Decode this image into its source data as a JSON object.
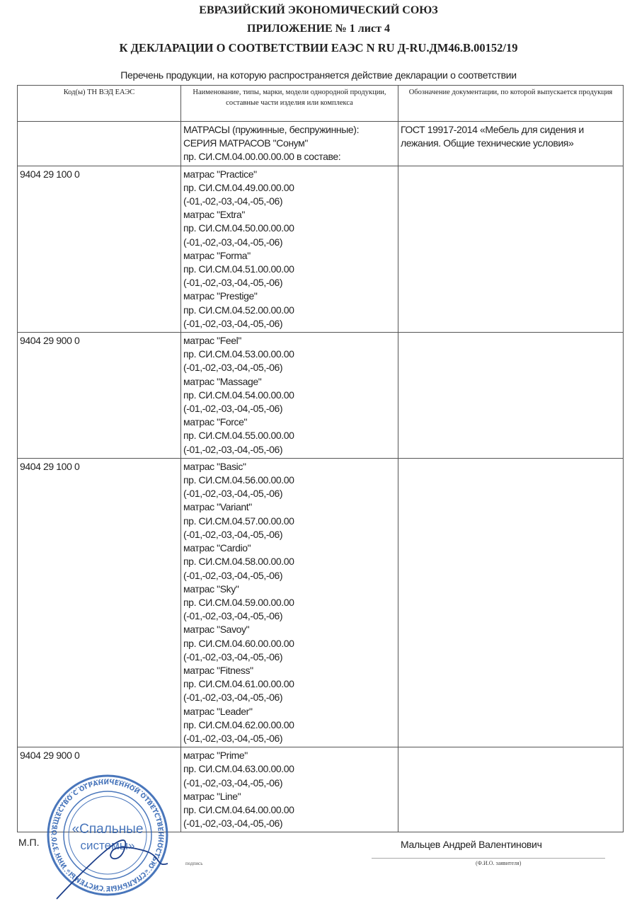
{
  "header": {
    "line1": "ЕВРАЗИЙСКИЙ ЭКОНОМИЧЕСКИЙ СОЮЗ",
    "line2": "ПРИЛОЖЕНИЕ № 1 лист 4",
    "line3": "К ДЕКЛАРАЦИИ О СООТВЕТСТВИИ ЕАЭС N RU Д-RU.ДМ46.В.00152/19"
  },
  "subtitle": "Перечень продукции, на которую распространяется действие декларации о соответствии",
  "table": {
    "columns": [
      "Код(ы) ТН ВЭД ЕАЭС",
      "Наименование, типы, марки, модели однородной продукции, составные части изделия или комплекса",
      "Обозначение документации, по которой выпускается продукция"
    ],
    "rows": [
      {
        "code": "",
        "items": [
          "МАТРАСЫ (пружинные, беспружинные):",
          "СЕРИЯ МАТРАСОВ \"Сонум\"",
          "пр. СИ.СМ.04.00.00.00.00 в составе:"
        ],
        "doc": [
          "ГОСТ 19917-2014 «Мебель для сидения и",
          "лежания. Общие технические условия»"
        ]
      },
      {
        "code": "9404 29 100 0",
        "items": [
          "матрас \"Practice\"",
          "пр. СИ.СМ.04.49.00.00.00",
          "(-01,-02,-03,-04,-05,-06)",
          "матрас \"Extra\"",
          "пр. СИ.СМ.04.50.00.00.00",
          "(-01,-02,-03,-04,-05,-06)",
          "матрас \"Forma\"",
          "пр. СИ.СМ.04.51.00.00.00",
          "(-01,-02,-03,-04,-05,-06)",
          "матрас \"Prestige\"",
          "пр. СИ.СМ.04.52.00.00.00",
          "(-01,-02,-03,-04,-05,-06)"
        ],
        "doc": []
      },
      {
        "code": "9404 29 900 0",
        "items": [
          "матрас \"Feel\"",
          "пр. СИ.СМ.04.53.00.00.00",
          "(-01,-02,-03,-04,-05,-06)",
          "матрас \"Massage\"",
          "пр. СИ.СМ.04.54.00.00.00",
          "(-01,-02,-03,-04,-05,-06)",
          "матрас \"Force\"",
          "пр. СИ.СМ.04.55.00.00.00",
          "(-01,-02,-03,-04,-05,-06)"
        ],
        "doc": []
      },
      {
        "code": "9404 29 100 0",
        "items": [
          "матрас \"Basic\"",
          "пр. СИ.СМ.04.56.00.00.00",
          "(-01,-02,-03,-04,-05,-06)",
          "матрас \"Variant\"",
          "пр. СИ.СМ.04.57.00.00.00",
          "(-01,-02,-03,-04,-05,-06)",
          "матрас \"Cardio\"",
          "пр. СИ.СМ.04.58.00.00.00",
          "(-01,-02,-03,-04,-05,-06)",
          "матрас \"Sky\"",
          "пр. СИ.СМ.04.59.00.00.00",
          "(-01,-02,-03,-04,-05,-06)",
          "матрас \"Savoy\"",
          "пр. СИ.СМ.04.60.00.00.00",
          "(-01,-02,-03,-04,-05,-06)",
          "матрас \"Fitness\"",
          "пр. СИ.СМ.04.61.00.00.00",
          "(-01,-02,-03,-04,-05,-06)",
          "матрас \"Leader\"",
          "пр. СИ.СМ.04.62.00.00.00",
          "(-01,-02,-03,-04,-05,-06)"
        ],
        "doc": []
      },
      {
        "code": "9404 29 900 0",
        "items": [
          "матрас \"Prime\"",
          "пр. СИ.СМ.04.63.00.00.00",
          "(-01,-02,-03,-04,-05,-06)",
          "матрас \"Line\"",
          "пр. СИ.СМ.04.64.00.00.00",
          "(-01,-02,-03,-04,-05,-06)"
        ],
        "doc": []
      }
    ]
  },
  "footer": {
    "mp": "М.П.",
    "signature_caption": "подпись",
    "applicant_name": "Мальцев Андрей Валентинович",
    "applicant_caption": "(Ф.И.О. заявителя)"
  },
  "stamp": {
    "center_line1": "«Спальные",
    "center_line2": "системы»",
    "ring_text": "ОБЩЕСТВО С ОГРАНИЧЕННОЙ ОТВЕТСТВЕННОСТЬЮ «СПАЛЬНЫЕ СИСТЕМЫ» ИНН 3702159100 * ОГРН 1163702071991 * г.ИВАНОВО *",
    "color": "#2a5fb0"
  }
}
